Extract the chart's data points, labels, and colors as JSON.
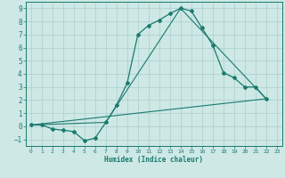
{
  "xlabel": "Humidex (Indice chaleur)",
  "bg_color": "#cde8e5",
  "grid_color": "#aacfcc",
  "line_color": "#1a7a6e",
  "xlim": [
    -0.5,
    23.5
  ],
  "ylim": [
    -1.5,
    9.5
  ],
  "yticks": [
    -1,
    0,
    1,
    2,
    3,
    4,
    5,
    6,
    7,
    8,
    9
  ],
  "xticks": [
    0,
    1,
    2,
    3,
    4,
    5,
    6,
    7,
    8,
    9,
    10,
    11,
    12,
    13,
    14,
    15,
    16,
    17,
    18,
    19,
    20,
    21,
    22,
    23
  ],
  "curve1_x": [
    0,
    1,
    2,
    3,
    4,
    5,
    6,
    7,
    8,
    9,
    10,
    11,
    12,
    13,
    14,
    15,
    16,
    17,
    18,
    19,
    20,
    21,
    22
  ],
  "curve1_y": [
    0.1,
    0.1,
    -0.2,
    -0.3,
    -0.4,
    -1.1,
    -0.9,
    0.3,
    1.6,
    3.3,
    7.0,
    7.7,
    8.1,
    8.6,
    9.0,
    8.8,
    7.5,
    6.2,
    4.1,
    3.7,
    3.0,
    3.0,
    2.1
  ],
  "curve2_x": [
    0,
    7,
    14,
    22
  ],
  "curve2_y": [
    0.1,
    0.3,
    9.0,
    2.1
  ],
  "curve3_x": [
    0,
    22
  ],
  "curve3_y": [
    0.1,
    2.1
  ]
}
